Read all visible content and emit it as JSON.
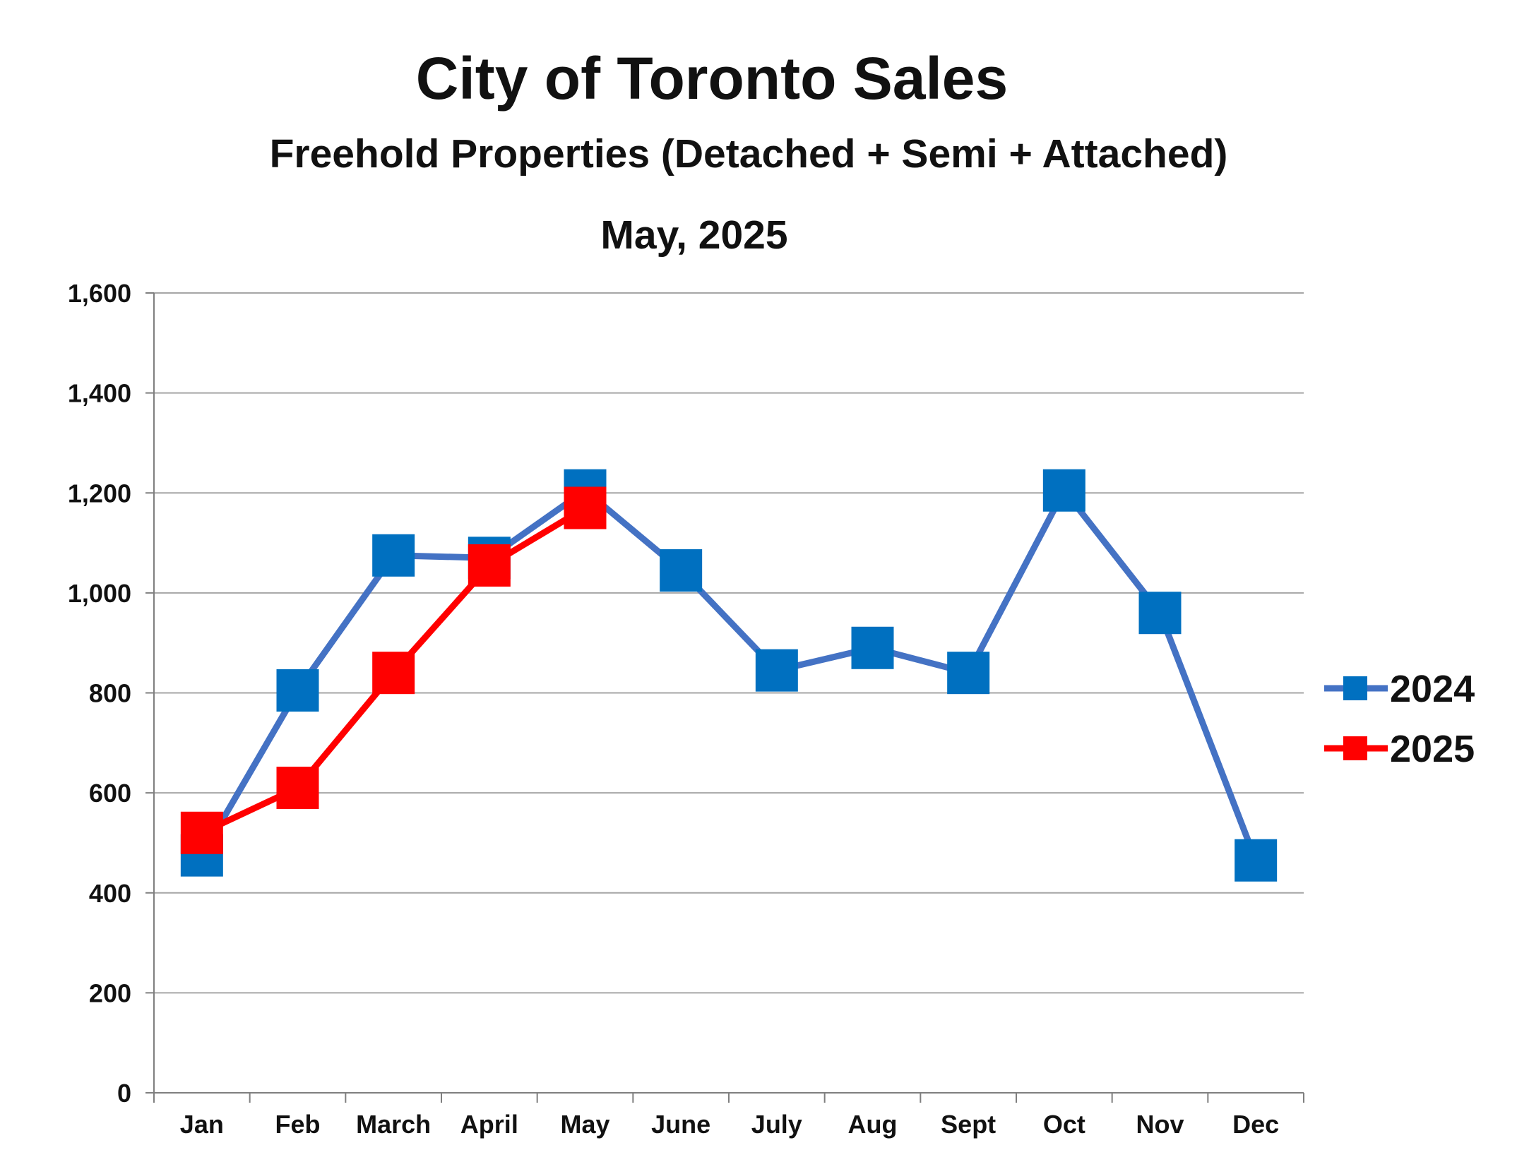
{
  "chart_data": {
    "type": "line",
    "title": "City of Toronto Sales",
    "subtitle": "Freehold Properties (Detached + Semi + Attached)",
    "period": "May, 2025",
    "xlabel": "",
    "ylabel": "",
    "categories": [
      "Jan",
      "Feb",
      "March",
      "April",
      "May",
      "June",
      "July",
      "Aug",
      "Sept",
      "Oct",
      "Nov",
      "Dec"
    ],
    "ylim": [
      0,
      1600
    ],
    "yticks": [
      0,
      200,
      400,
      600,
      800,
      1000,
      1200,
      1400,
      1600
    ],
    "ytick_labels": [
      "0",
      "200",
      "400",
      "600",
      "800",
      "1,000",
      "1,200",
      "1,400",
      "1,600"
    ],
    "grid": "horizontal",
    "legend_position": "right",
    "series": [
      {
        "name": "2024",
        "color": "#4472C4",
        "marker_color": "#0070C0",
        "values": [
          475,
          805,
          1075,
          1070,
          1205,
          1045,
          845,
          890,
          840,
          1205,
          960,
          465
        ]
      },
      {
        "name": "2025",
        "color": "#FF0000",
        "marker_color": "#FF0000",
        "values": [
          520,
          610,
          840,
          1055,
          1170,
          null,
          null,
          null,
          null,
          null,
          null,
          null
        ]
      }
    ]
  }
}
